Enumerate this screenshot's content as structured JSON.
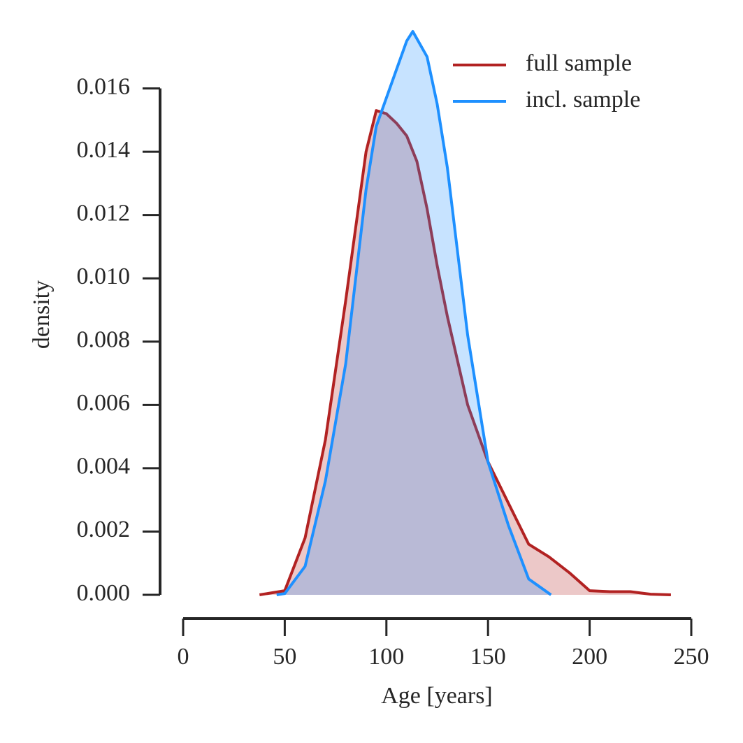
{
  "chart_data": {
    "type": "area",
    "xlabel": "Age [years]",
    "ylabel": "density",
    "xlim": [
      0,
      250
    ],
    "ylim": [
      0,
      0.0178
    ],
    "xticks": [
      0,
      50,
      100,
      150,
      200,
      250
    ],
    "yticks": [
      {
        "value": 0,
        "label": "0.000"
      },
      {
        "value": 0.002,
        "label": "0.002"
      },
      {
        "value": 0.004,
        "label": "0.004"
      },
      {
        "value": 0.006,
        "label": "0.006"
      },
      {
        "value": 0.008,
        "label": "0.008"
      },
      {
        "value": 0.01,
        "label": "0.010"
      },
      {
        "value": 0.012,
        "label": "0.012"
      },
      {
        "value": 0.014,
        "label": "0.014"
      },
      {
        "value": 0.016,
        "label": "0.016"
      }
    ],
    "legend": "upper right",
    "series": [
      {
        "name": "full sample",
        "color": "#b22222",
        "x": [
          37.6,
          50,
          60,
          70,
          80,
          90,
          95,
          100,
          105,
          110,
          115,
          120,
          125,
          130,
          140,
          150,
          160,
          170,
          180,
          190,
          200,
          210,
          220,
          230,
          240
        ],
        "values": [
          0,
          0.00013,
          0.0018,
          0.0049,
          0.0093,
          0.014,
          0.0153,
          0.0152,
          0.0149,
          0.0145,
          0.0137,
          0.0122,
          0.0104,
          0.0088,
          0.006,
          0.0042,
          0.0029,
          0.0016,
          0.0012,
          0.0007,
          0.00013,
          0.0001,
          0.0001,
          2e-05,
          0
        ]
      },
      {
        "name": "incl. sample",
        "color": "#1e90ff",
        "x": [
          46,
          50,
          60,
          70,
          80,
          90,
          95,
          100,
          105,
          110,
          113,
          120,
          125,
          130,
          140,
          150,
          160,
          170,
          181
        ],
        "values": [
          0,
          4e-05,
          0.0009,
          0.0036,
          0.0073,
          0.0128,
          0.0148,
          0.0157,
          0.0166,
          0.0175,
          0.0178,
          0.017,
          0.0155,
          0.0135,
          0.0082,
          0.0042,
          0.0022,
          0.0005,
          0
        ]
      }
    ]
  }
}
